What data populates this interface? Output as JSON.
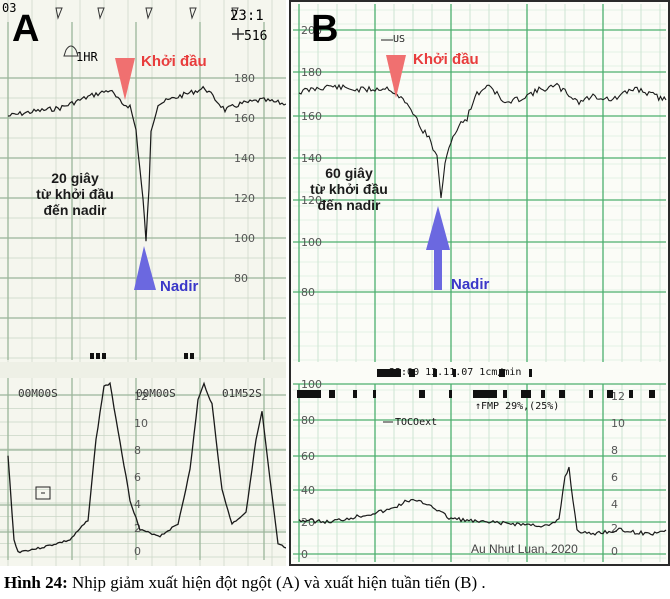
{
  "panel_a": {
    "letter": "A",
    "time": "23:1",
    "top_right": "516",
    "alarm": "1HR",
    "onset_label": "Khởi đầu",
    "nadir_label": "Nadir",
    "note_lines": [
      "20 giây",
      "từ khởi đầu",
      "đến nadir"
    ],
    "fhr_ticks": [
      "180",
      "160",
      "140",
      "120",
      "100",
      "80"
    ],
    "toco_ticks": [
      "12",
      "10",
      "8",
      "6",
      "4",
      "2",
      "0"
    ],
    "timer_labels": [
      "00M00S",
      "00M00S",
      "01M52S"
    ],
    "left_edge": "03"
  },
  "panel_b": {
    "letter": "B",
    "us_label": "US",
    "onset_label": "Khởi đầu",
    "nadir_label": "Nadir",
    "note_lines": [
      "60 giây",
      "từ khởi đầu",
      "đến nadir"
    ],
    "fhr_ticks": [
      "200",
      "180",
      "160",
      "140",
      "120",
      "100",
      "80"
    ],
    "toco_ticks": [
      "100",
      "80",
      "60",
      "40",
      "20",
      "0"
    ],
    "kpa_ticks": [
      "12",
      "10",
      "8",
      "6",
      "4",
      "2",
      "0"
    ],
    "header": "22:00  13.11.07  1cm/min",
    "fmp": "↑FMP 29%,(25%)",
    "toco_label": "TOCOext",
    "watermark": "Au Nhut Luan, 2020"
  },
  "caption": {
    "prefix": "Hình 24:",
    "text": " Nhịp giảm xuất hiện đột ngột (A) và xuất hiện tuần tiến (B) ."
  },
  "colors": {
    "grid_a": "#9bb59a",
    "grid_b": "#4caf6e",
    "onset_arrow": "#f07070",
    "nadir_arrow": "#6b68e0"
  }
}
